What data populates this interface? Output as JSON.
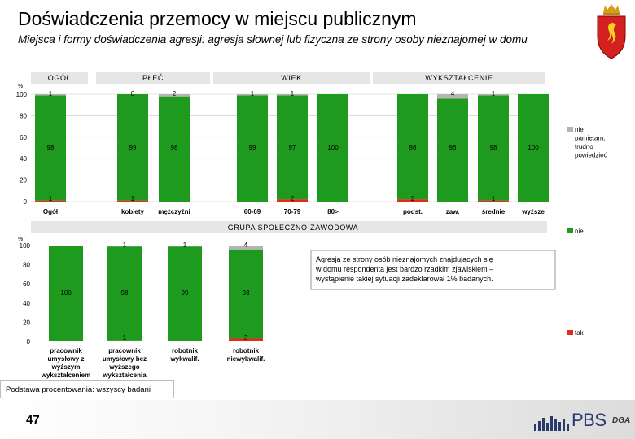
{
  "title": "Doświadczenia przemocy w miejscu publicznym",
  "subtitle": "Miejsca i formy doświadczenia agresji: agresja słownej lub fizyczna ze strony osoby nieznajomej w domu",
  "footnote": "Podstawa procentowania: wszyscy badani",
  "page_number": "47",
  "logo": {
    "brand": "PBS",
    "sub": "DGA"
  },
  "colors": {
    "green": "#1e9a1e",
    "red": "#e8281c",
    "grey": "#b4b4b4",
    "header_bg": "#e6e6e6",
    "grid": "#c8c8c8"
  },
  "chart_data": [
    {
      "type": "bar",
      "stacked": true,
      "percent_label": "%",
      "yticks": [
        "100",
        "80",
        "60",
        "40",
        "20",
        "0"
      ],
      "ylim": [
        0,
        100
      ],
      "groups": [
        "OGÓŁ",
        "PŁEĆ",
        "WIEK",
        "WYKSZTAŁCENIE"
      ],
      "categories": [
        "Ogół",
        "kobiety",
        "mężczyźni",
        "60-69",
        "70-79",
        "80>",
        "podst.",
        "zaw.",
        "średnie",
        "wyższe"
      ],
      "series": [
        {
          "name": "tak",
          "values": [
            "1",
            "1",
            "",
            "",
            "2",
            "",
            "2",
            "",
            "1",
            ""
          ],
          "heights": [
            1,
            1,
            0,
            0,
            2,
            0,
            2,
            0,
            1,
            0
          ]
        },
        {
          "name": "nie",
          "values": [
            "98",
            "99",
            "98",
            "99",
            "97",
            "100",
            "98",
            "96",
            "98",
            "100"
          ],
          "heights": [
            98,
            99,
            98,
            99,
            97,
            100,
            98,
            96,
            98,
            100
          ]
        },
        {
          "name": "nie pamiętam, trudno powiedzieć",
          "values": [
            "1",
            "0",
            "2",
            "1",
            "1",
            "",
            "",
            "4",
            "1",
            ""
          ],
          "heights": [
            1,
            0,
            2,
            1,
            1,
            0,
            0,
            4,
            1,
            0
          ]
        }
      ],
      "legend": {
        "grey": [
          "nie",
          "pamiętam,",
          "trudno",
          "powiedzieć"
        ]
      }
    },
    {
      "type": "bar",
      "stacked": true,
      "group_title": "GRUPA SPOŁECZNO-ZAWODOWA",
      "percent_label": "%",
      "yticks": [
        "100",
        "80",
        "60",
        "40",
        "20",
        "0"
      ],
      "ylim": [
        0,
        100
      ],
      "categories": [
        [
          "pracownik",
          "umysłowy z",
          "wyższym",
          "wykształceniem"
        ],
        [
          "pracownik",
          "umysłowy bez",
          "wyższego",
          "wykształcenia"
        ],
        [
          "robotnik",
          "wykwalif."
        ],
        [
          "robotnik",
          "niewykwalif."
        ]
      ],
      "series": [
        {
          "name": "tak",
          "values": [
            "",
            "1",
            "",
            "3"
          ],
          "heights": [
            0,
            1,
            0,
            3
          ]
        },
        {
          "name": "nie",
          "values": [
            "100",
            "98",
            "99",
            "93"
          ],
          "heights": [
            100,
            98,
            99,
            93
          ]
        },
        {
          "name": "nie pamiętam, trudno powiedzieć",
          "values": [
            "",
            "1",
            "1",
            "4"
          ],
          "heights": [
            0,
            1,
            1,
            4
          ]
        }
      ],
      "legend": {
        "green": "nie",
        "red": "tak"
      },
      "annotation": [
        "Agresja ze strony osób nieznajomych znajdujących się",
        "w domu respondenta jest bardzo rzadkim zjawiskiem –",
        "wystąpienie takiej sytuacji zadeklarował 1% badanych."
      ]
    }
  ]
}
